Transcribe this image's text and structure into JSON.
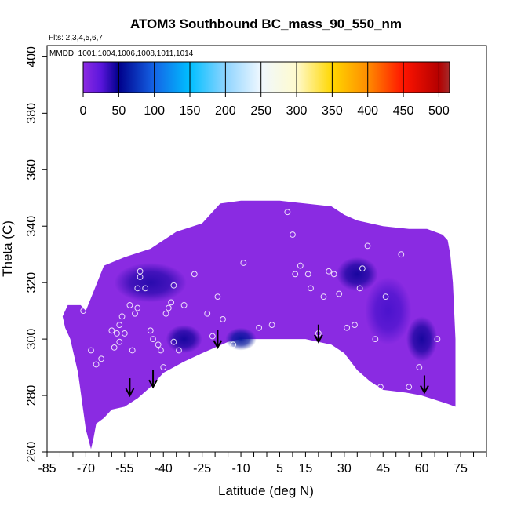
{
  "chart_data": {
    "type": "heatmap",
    "title": "ATOM3 Southbound BC_mass_90_550_nm",
    "flights_note": "Flts: 2,3,4,5,6,7",
    "mmdd_note": "MMDD: 1001,1004,1006,1008,1011,1014",
    "xlabel": "Latitude (deg N)",
    "ylabel": "Theta (C)",
    "xlim": [
      -85,
      85
    ],
    "ylim": [
      260,
      404
    ],
    "x_tick_labels": [
      "-85",
      "-70",
      "-55",
      "-40",
      "-25",
      "-10",
      "5",
      "15",
      "30",
      "45",
      "60",
      "75"
    ],
    "y_tick_labels": [
      "260",
      "280",
      "300",
      "320",
      "340",
      "360",
      "380",
      "400"
    ],
    "colorbar": {
      "range": [
        0,
        515
      ],
      "tick_labels": [
        "0",
        "50",
        "100",
        "150",
        "200",
        "250",
        "300",
        "350",
        "400",
        "450",
        "500"
      ],
      "stops": [
        {
          "value": 0,
          "color": "#8c2be2"
        },
        {
          "value": 25,
          "color": "#5a16dc"
        },
        {
          "value": 50,
          "color": "#00008b"
        },
        {
          "value": 100,
          "color": "#1464e6"
        },
        {
          "value": 150,
          "color": "#00bfff"
        },
        {
          "value": 200,
          "color": "#8ed4ff"
        },
        {
          "value": 250,
          "color": "#f0f8ff"
        },
        {
          "value": 300,
          "color": "#fffacd"
        },
        {
          "value": 350,
          "color": "#ffd700"
        },
        {
          "value": 400,
          "color": "#ff8c00"
        },
        {
          "value": 450,
          "color": "#ff1400"
        },
        {
          "value": 500,
          "color": "#b40000"
        },
        {
          "value": 515,
          "color": "#a52a2a"
        }
      ]
    },
    "field_fill_color": "#8a2be2",
    "domain_boundary": {
      "upper": [
        [
          -70,
          310
        ],
        [
          -63,
          326
        ],
        [
          -55,
          329
        ],
        [
          -45,
          332
        ],
        [
          -35,
          338
        ],
        [
          -25,
          341
        ],
        [
          -18,
          348
        ],
        [
          -10,
          349
        ],
        [
          5,
          349
        ],
        [
          15,
          348
        ],
        [
          25,
          347
        ],
        [
          30,
          344
        ],
        [
          35,
          342
        ],
        [
          45,
          340
        ],
        [
          55,
          339
        ],
        [
          62,
          339
        ],
        [
          68,
          337
        ],
        [
          70,
          335
        ],
        [
          71,
          330
        ],
        [
          72,
          320
        ],
        [
          73,
          300
        ],
        [
          73,
          276
        ]
      ],
      "lower": [
        [
          73,
          276
        ],
        [
          70,
          277
        ],
        [
          60,
          280
        ],
        [
          54,
          281
        ],
        [
          45,
          282
        ],
        [
          40,
          285
        ],
        [
          35,
          289
        ],
        [
          30,
          295
        ],
        [
          25,
          298
        ],
        [
          20,
          299
        ],
        [
          15,
          300
        ],
        [
          5,
          300
        ],
        [
          -10,
          300
        ],
        [
          -15,
          299
        ],
        [
          -20,
          297
        ],
        [
          -25,
          295
        ],
        [
          -32,
          292
        ],
        [
          -40,
          288
        ],
        [
          -45,
          283
        ],
        [
          -50,
          279
        ],
        [
          -55,
          276
        ],
        [
          -60,
          275
        ],
        [
          -63,
          272
        ],
        [
          -66,
          270
        ],
        [
          -67,
          265
        ],
        [
          -68,
          261
        ],
        [
          -70,
          268
        ],
        [
          -73,
          288
        ],
        [
          -76,
          300
        ],
        [
          -78,
          304
        ],
        [
          -79,
          308
        ],
        [
          -77,
          312
        ],
        [
          -72,
          312
        ],
        [
          -70,
          310
        ]
      ]
    },
    "low_value_patches": [
      {
        "center": [
          -45,
          320
        ],
        "radius": [
          14,
          7
        ],
        "value": 40
      },
      {
        "center": [
          -32,
          300
        ],
        "radius": [
          7,
          5
        ],
        "value": 45
      },
      {
        "center": [
          -10,
          300
        ],
        "radius": [
          6,
          4
        ],
        "value": 60
      },
      {
        "center": [
          35,
          323
        ],
        "radius": [
          8,
          6
        ],
        "value": 45
      },
      {
        "center": [
          47,
          310
        ],
        "radius": [
          9,
          12
        ],
        "value": 30
      },
      {
        "center": [
          60,
          300
        ],
        "radius": [
          6,
          8
        ],
        "value": 45
      }
    ],
    "sample_points": [
      [
        -71,
        310
      ],
      [
        -68,
        296
      ],
      [
        -66,
        291
      ],
      [
        -64,
        293
      ],
      [
        -60,
        303
      ],
      [
        -59,
        297
      ],
      [
        -58,
        302
      ],
      [
        -57,
        299
      ],
      [
        -57,
        305
      ],
      [
        -56,
        308
      ],
      [
        -55,
        302
      ],
      [
        -53,
        312
      ],
      [
        -52,
        296
      ],
      [
        -51,
        309
      ],
      [
        -50,
        311
      ],
      [
        -50,
        318
      ],
      [
        -49,
        324
      ],
      [
        -49,
        322
      ],
      [
        -47,
        318
      ],
      [
        -45,
        303
      ],
      [
        -44,
        300
      ],
      [
        -42,
        298
      ],
      [
        -41,
        296
      ],
      [
        -40,
        290
      ],
      [
        -39,
        309
      ],
      [
        -38,
        311
      ],
      [
        -37,
        313
      ],
      [
        -36,
        319
      ],
      [
        -36,
        299
      ],
      [
        -34,
        296
      ],
      [
        -32,
        312
      ],
      [
        -28,
        323
      ],
      [
        -23,
        309
      ],
      [
        -21,
        301
      ],
      [
        -19,
        315
      ],
      [
        -17,
        307
      ],
      [
        -13,
        298
      ],
      [
        -9,
        327
      ],
      [
        -3,
        304
      ],
      [
        2,
        305
      ],
      [
        8,
        345
      ],
      [
        10,
        337
      ],
      [
        11,
        323
      ],
      [
        13,
        326
      ],
      [
        16,
        323
      ],
      [
        17,
        318
      ],
      [
        20,
        302
      ],
      [
        22,
        315
      ],
      [
        24,
        324
      ],
      [
        26,
        323
      ],
      [
        28,
        316
      ],
      [
        31,
        304
      ],
      [
        33,
        286
      ],
      [
        34,
        305
      ],
      [
        36,
        318
      ],
      [
        37,
        325
      ],
      [
        39,
        333
      ],
      [
        42,
        300
      ],
      [
        44,
        283
      ],
      [
        46,
        315
      ],
      [
        52,
        330
      ],
      [
        55,
        283
      ],
      [
        59,
        290
      ],
      [
        63,
        276
      ],
      [
        66,
        300
      ]
    ],
    "arrows": [
      {
        "lat": -53,
        "theta": 280
      },
      {
        "lat": -44,
        "theta": 283
      },
      {
        "lat": -19,
        "theta": 297
      },
      {
        "lat": 20,
        "theta": 299
      },
      {
        "lat": 61,
        "theta": 281
      }
    ]
  }
}
